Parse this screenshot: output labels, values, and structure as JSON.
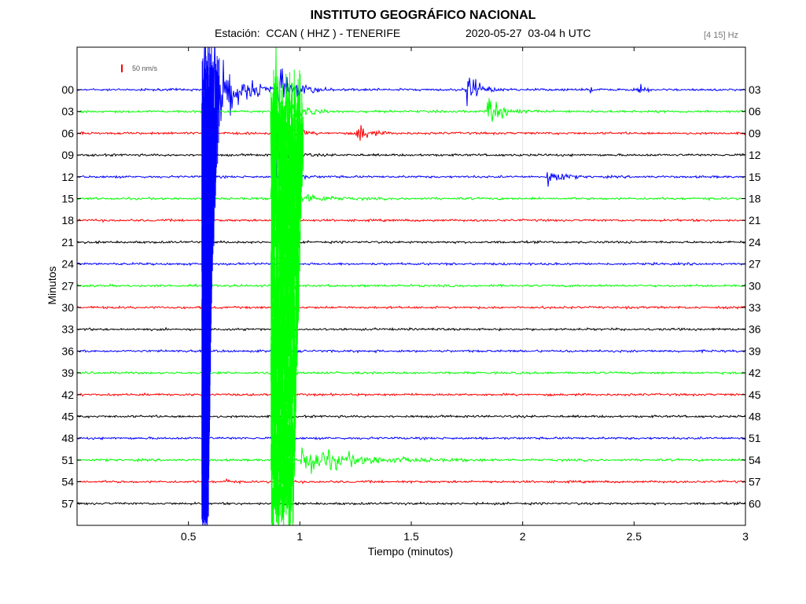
{
  "header": {
    "title": "INSTITUTO GEOGRÁFICO NACIONAL",
    "station": "Estación:  CCAN ( HHZ ) - TENERIFE",
    "datetime": "2020-05-27  03-04 h UTC",
    "filter": "[4 15] Hz"
  },
  "colors": {
    "blue": "#0000ff",
    "green": "#00ff00",
    "red": "#ff0000",
    "black": "#000000"
  },
  "chart_data": {
    "type": "line",
    "title": "INSTITUTO GEOGRÁFICO NACIONAL",
    "xlabel": "Tiempo (minutos)",
    "ylabel": "Minutos",
    "xlim": [
      0,
      3
    ],
    "x_ticks": [
      0.5,
      1,
      1.5,
      2,
      2.5,
      3
    ],
    "x_tick_labels": [
      "0.5",
      "1",
      "1.5",
      "2",
      "2.5",
      "3"
    ],
    "scale_bar": "50 nm/s",
    "grid": "vertical at 2",
    "traces": [
      {
        "start": "00",
        "end": "03",
        "color": "blue",
        "events": [
          {
            "t": 0.57,
            "amp": 65,
            "decay": 0.09,
            "clip": true
          },
          {
            "t": 0.9,
            "amp": 14,
            "decay": 0.07
          },
          {
            "t": 1.74,
            "amp": 26,
            "decay": 0.04
          },
          {
            "t": 2.3,
            "amp": 3,
            "decay": 0.01
          },
          {
            "t": 2.52,
            "amp": 5,
            "decay": 0.02
          }
        ]
      },
      {
        "start": "03",
        "end": "06",
        "color": "green",
        "events": [
          {
            "t": 0.87,
            "amp": 65,
            "decay": 0.05,
            "clip": true
          },
          {
            "t": 1.84,
            "amp": 16,
            "decay": 0.05
          }
        ]
      },
      {
        "start": "06",
        "end": "09",
        "color": "red",
        "events": [
          {
            "t": 0.88,
            "amp": 40,
            "decay": 0.04,
            "clip": true
          },
          {
            "t": 1.25,
            "amp": 13,
            "decay": 0.04
          }
        ]
      },
      {
        "start": "09",
        "end": "12",
        "color": "black",
        "events": [
          {
            "t": 0.88,
            "amp": 30,
            "decay": 0.04,
            "clip": true
          }
        ]
      },
      {
        "start": "12",
        "end": "15",
        "color": "blue",
        "events": [
          {
            "t": 0.89,
            "amp": 22,
            "decay": 0.04
          },
          {
            "t": 2.11,
            "amp": 14,
            "decay": 0.04
          }
        ]
      },
      {
        "start": "15",
        "end": "18",
        "color": "green",
        "events": [
          {
            "t": 0.87,
            "amp": 22,
            "decay": 0.09
          }
        ]
      },
      {
        "start": "18",
        "end": "21",
        "color": "red",
        "events": []
      },
      {
        "start": "21",
        "end": "24",
        "color": "black",
        "events": []
      },
      {
        "start": "24",
        "end": "27",
        "color": "blue",
        "events": []
      },
      {
        "start": "27",
        "end": "30",
        "color": "green",
        "events": []
      },
      {
        "start": "30",
        "end": "33",
        "color": "red",
        "events": []
      },
      {
        "start": "33",
        "end": "36",
        "color": "black",
        "events": []
      },
      {
        "start": "36",
        "end": "39",
        "color": "blue",
        "events": []
      },
      {
        "start": "39",
        "end": "42",
        "color": "green",
        "events": []
      },
      {
        "start": "42",
        "end": "45",
        "color": "red",
        "events": []
      },
      {
        "start": "45",
        "end": "48",
        "color": "black",
        "events": []
      },
      {
        "start": "48",
        "end": "51",
        "color": "blue",
        "events": [
          {
            "t": 2.98,
            "amp": 7,
            "decay": 0.01
          }
        ]
      },
      {
        "start": "51",
        "end": "54",
        "color": "green",
        "events": [
          {
            "t": 1.0,
            "amp": 14,
            "decay": 0.2
          }
        ]
      },
      {
        "start": "54",
        "end": "57",
        "color": "red",
        "events": [
          {
            "t": 0.67,
            "amp": 4,
            "decay": 0.01
          }
        ]
      },
      {
        "start": "57",
        "end": "60",
        "color": "black",
        "events": []
      }
    ],
    "overlay_bursts": [
      {
        "color": "blue",
        "t_start": 0.56,
        "t_end": 0.64,
        "from_minute": "00",
        "to_minute": "57",
        "decay": 0.55
      },
      {
        "color": "green",
        "t_start": 0.87,
        "t_end": 1.02,
        "from_minute": "03",
        "to_minute": "57",
        "decay": 1.8
      }
    ]
  }
}
